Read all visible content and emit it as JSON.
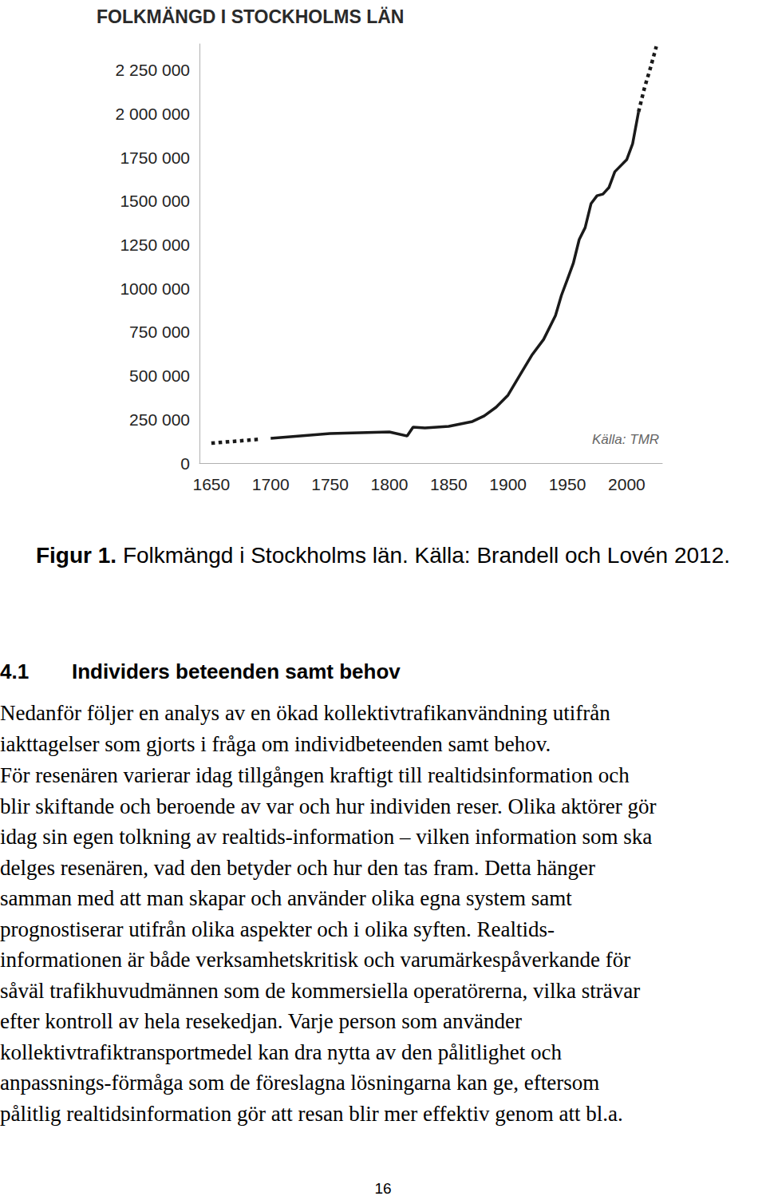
{
  "chart_data": {
    "type": "line",
    "title": "FOLKMÄNGD I STOCKHOLMS LÄN",
    "annotation": "Källa: TMR",
    "x": [
      1650,
      1692,
      1700,
      1750,
      1800,
      1815,
      1820,
      1830,
      1850,
      1870,
      1880,
      1890,
      1900,
      1910,
      1920,
      1930,
      1940,
      1945,
      1950,
      1955,
      1960,
      1965,
      1970,
      1975,
      1980,
      1985,
      1990,
      2000,
      2005,
      2010,
      2015,
      2020,
      2025
    ],
    "series": [
      {
        "line_style": "dotted",
        "color": "#1a1a1a",
        "values": [
          114000,
          137000,
          null,
          null,
          null,
          null,
          null,
          null,
          null,
          null,
          null,
          null,
          null,
          null,
          null,
          null,
          null,
          null,
          null,
          null,
          null,
          null,
          null,
          null,
          null,
          null,
          null,
          null,
          null,
          null,
          null,
          null,
          null
        ]
      },
      {
        "line_style": "solid",
        "color": "#1a1a1a",
        "values": [
          null,
          null,
          142000,
          169000,
          178000,
          155000,
          206000,
          201000,
          210000,
          238000,
          270000,
          320000,
          389000,
          503000,
          617000,
          708000,
          845000,
          960000,
          1051000,
          1143000,
          1280000,
          1348000,
          1486000,
          1531000,
          1540000,
          1577000,
          1668000,
          1737000,
          1828000,
          2011000,
          null,
          null,
          null
        ]
      },
      {
        "line_style": "dotted",
        "color": "#1a1a1a",
        "values": [
          null,
          null,
          null,
          null,
          null,
          null,
          null,
          null,
          null,
          null,
          null,
          null,
          null,
          null,
          null,
          null,
          null,
          null,
          null,
          null,
          null,
          null,
          null,
          null,
          null,
          null,
          null,
          null,
          null,
          2011000,
          2148000,
          2262000,
          2386000
        ]
      }
    ],
    "xlim": [
      1640,
      2030
    ],
    "xticks": [
      1650,
      1700,
      1750,
      1800,
      1850,
      1900,
      1950,
      2000
    ],
    "ylim": [
      0,
      2400000
    ],
    "yticks": [
      0,
      {
        "value": 250000,
        "label": "250 000"
      },
      {
        "value": 500000,
        "label": "500 000"
      },
      {
        "value": 750000,
        "label": "750 000"
      },
      {
        "value": 1000000,
        "label": "1000 000"
      },
      {
        "value": 1250000,
        "label": "1250 000"
      },
      {
        "value": 1500000,
        "label": "1500 000"
      },
      {
        "value": 1750000,
        "label": "1750 000"
      },
      {
        "value": 2000000,
        "label": "2 000 000"
      },
      {
        "value": 2250000,
        "label": "2 250 000"
      }
    ],
    "grid": false
  },
  "document": {
    "caption": {
      "label": "Figur 1.",
      "text": "Folkmängd i Stockholms län. Källa: Brandell och Lovén 2012."
    },
    "section": {
      "number": "4.1",
      "title": "Individers beteenden samt behov"
    },
    "paragraphs": [
      [
        "Nedanför följer en analys av en ökad kollektivtrafikanvändning utifrån",
        "iakttagelser som gjorts i fråga om individbeteenden samt behov."
      ],
      [
        "För resenären varierar idag tillgången kraftigt till realtidsinformation och",
        "blir skiftande och beroende av var och hur individen reser. Olika aktörer gör",
        "idag sin egen tolkning av realtids-information – vilken information som ska",
        "delges resenären, vad den betyder och hur den tas fram. Detta hänger",
        "samman med att man skapar och använder olika egna system samt",
        "prognostiserar utifrån olika aspekter och i olika syften. Realtids-",
        "informationen är både verksamhetskritisk och varumärkespåverkande för",
        "såväl trafikhuvudmännen som de kommersiella operatörerna, vilka strävar",
        "efter kontroll av hela resekedjan. Varje person som använder",
        "kollektivtrafiktransportmedel kan dra nytta av den pålitlighet och",
        "anpassnings-förmåga som de föreslagna lösningarna kan ge, eftersom",
        "pålitlig realtidsinformation gör att resan blir mer effektiv genom att bl.a."
      ]
    ],
    "page_number": 16
  }
}
